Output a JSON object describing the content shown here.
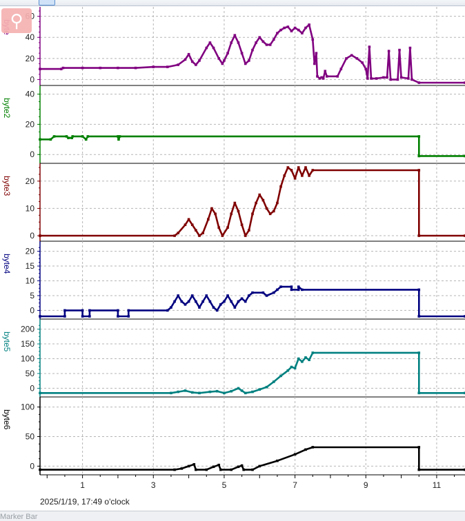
{
  "toolbar": {
    "buttons": [
      {
        "icon": "select-icon"
      },
      {
        "icon": "arrow-icon"
      },
      {
        "icon": "zoom-window-icon"
      },
      {
        "icon": "fit-icon"
      },
      {
        "icon": "save-icon"
      }
    ]
  },
  "zoom_icon": "magnifier-icon",
  "timestamp": "2025/1/19, 17:49 o'clock",
  "marker_bar": {
    "label": "Marker Bar"
  },
  "chart_data": {
    "type": "line",
    "x_ticks": [
      1,
      3,
      5,
      7,
      9,
      11
    ],
    "xlim": [
      -0.2,
      11.8
    ],
    "grid": true,
    "panels": [
      {
        "name": "byte1",
        "label": "byte",
        "color": "#800080",
        "yticks": [
          0,
          20,
          40,
          60
        ],
        "ylim": [
          -3,
          65
        ],
        "series": [
          [
            -0.2,
            10
          ],
          [
            0.4,
            10
          ],
          [
            0.45,
            11
          ],
          [
            1,
            11
          ],
          [
            1.5,
            11
          ],
          [
            2,
            11
          ],
          [
            2.5,
            11
          ],
          [
            3,
            12
          ],
          [
            3.4,
            12
          ],
          [
            3.7,
            14
          ],
          [
            3.9,
            19
          ],
          [
            4.0,
            24
          ],
          [
            4.1,
            17
          ],
          [
            4.2,
            14
          ],
          [
            4.3,
            18
          ],
          [
            4.5,
            30
          ],
          [
            4.6,
            35
          ],
          [
            4.7,
            30
          ],
          [
            4.85,
            20
          ],
          [
            4.95,
            15
          ],
          [
            5.0,
            18
          ],
          [
            5.1,
            25
          ],
          [
            5.2,
            35
          ],
          [
            5.3,
            42
          ],
          [
            5.4,
            35
          ],
          [
            5.5,
            25
          ],
          [
            5.6,
            15
          ],
          [
            5.7,
            18
          ],
          [
            5.8,
            28
          ],
          [
            5.9,
            35
          ],
          [
            6.0,
            40
          ],
          [
            6.1,
            36
          ],
          [
            6.2,
            33
          ],
          [
            6.3,
            33
          ],
          [
            6.4,
            38
          ],
          [
            6.5,
            44
          ],
          [
            6.6,
            47
          ],
          [
            6.7,
            49
          ],
          [
            6.8,
            50
          ],
          [
            6.9,
            46
          ],
          [
            7.0,
            49
          ],
          [
            7.1,
            47
          ],
          [
            7.2,
            44
          ],
          [
            7.3,
            49
          ],
          [
            7.4,
            52
          ],
          [
            7.5,
            38
          ],
          [
            7.55,
            15
          ],
          [
            7.6,
            25
          ],
          [
            7.63,
            3
          ],
          [
            7.7,
            1
          ],
          [
            7.75,
            2
          ],
          [
            7.8,
            1
          ],
          [
            7.85,
            8
          ],
          [
            7.9,
            3
          ],
          [
            8.2,
            3
          ],
          [
            8.3,
            10
          ],
          [
            8.45,
            20
          ],
          [
            8.6,
            23
          ],
          [
            8.75,
            20
          ],
          [
            8.9,
            16
          ],
          [
            9.0,
            10
          ],
          [
            9.05,
            1
          ],
          [
            9.1,
            31
          ],
          [
            9.15,
            1
          ],
          [
            9.3,
            1
          ],
          [
            9.5,
            2
          ],
          [
            9.6,
            2
          ],
          [
            9.65,
            27
          ],
          [
            9.7,
            0
          ],
          [
            9.9,
            0
          ],
          [
            9.95,
            28
          ],
          [
            10.0,
            2
          ],
          [
            10.2,
            1
          ],
          [
            10.25,
            30
          ],
          [
            10.3,
            0
          ],
          [
            10.5,
            -3
          ],
          [
            11.8,
            -3
          ]
        ]
      },
      {
        "name": "byte2",
        "label": "byte2",
        "color": "#008000",
        "yticks": [
          0,
          20,
          40
        ],
        "ylim": [
          -4,
          43
        ],
        "series": [
          [
            -0.2,
            10
          ],
          [
            0.1,
            10
          ],
          [
            0.2,
            12
          ],
          [
            0.55,
            12
          ],
          [
            0.6,
            11
          ],
          [
            0.7,
            11
          ],
          [
            0.72,
            12
          ],
          [
            1.0,
            12
          ],
          [
            1.1,
            10
          ],
          [
            1.15,
            12
          ],
          [
            2.0,
            12
          ],
          [
            2.02,
            10
          ],
          [
            2.05,
            12
          ],
          [
            10.5,
            12
          ],
          [
            10.5,
            -1
          ],
          [
            11.8,
            -1
          ]
        ]
      },
      {
        "name": "byte3",
        "label": "byte3",
        "color": "#800000",
        "yticks": [
          0,
          10,
          20
        ],
        "ylim": [
          -1,
          25
        ],
        "series": [
          [
            -0.2,
            0
          ],
          [
            3.6,
            0
          ],
          [
            3.7,
            1
          ],
          [
            3.9,
            4
          ],
          [
            4.0,
            6
          ],
          [
            4.1,
            4
          ],
          [
            4.2,
            2
          ],
          [
            4.3,
            0
          ],
          [
            4.4,
            1
          ],
          [
            4.55,
            6
          ],
          [
            4.65,
            10
          ],
          [
            4.75,
            8
          ],
          [
            4.85,
            3
          ],
          [
            4.95,
            0
          ],
          [
            5.1,
            3
          ],
          [
            5.2,
            8
          ],
          [
            5.3,
            12
          ],
          [
            5.4,
            9
          ],
          [
            5.5,
            4
          ],
          [
            5.6,
            0
          ],
          [
            5.7,
            2
          ],
          [
            5.8,
            8
          ],
          [
            5.9,
            12
          ],
          [
            6.0,
            15
          ],
          [
            6.1,
            13
          ],
          [
            6.2,
            10
          ],
          [
            6.3,
            8
          ],
          [
            6.4,
            9
          ],
          [
            6.5,
            12
          ],
          [
            6.6,
            18
          ],
          [
            6.7,
            22
          ],
          [
            6.8,
            25
          ],
          [
            6.9,
            24
          ],
          [
            7.0,
            21
          ],
          [
            7.1,
            25
          ],
          [
            7.2,
            22
          ],
          [
            7.3,
            25
          ],
          [
            7.4,
            22
          ],
          [
            7.5,
            24
          ],
          [
            10.5,
            24
          ],
          [
            10.5,
            0
          ],
          [
            11.8,
            0
          ]
        ]
      },
      {
        "name": "byte4",
        "label": "byte4",
        "color": "#000080",
        "yticks": [
          0,
          5,
          10,
          15,
          20
        ],
        "ylim": [
          -2,
          22
        ],
        "series": [
          [
            -0.2,
            -2
          ],
          [
            0.5,
            -2
          ],
          [
            0.5,
            0
          ],
          [
            1.0,
            0
          ],
          [
            1.0,
            -2
          ],
          [
            1.2,
            -2
          ],
          [
            1.2,
            0
          ],
          [
            2.0,
            0
          ],
          [
            2.0,
            -2
          ],
          [
            2.3,
            -2
          ],
          [
            2.3,
            0
          ],
          [
            3.4,
            0
          ],
          [
            3.5,
            1
          ],
          [
            3.6,
            3
          ],
          [
            3.7,
            5
          ],
          [
            3.8,
            3
          ],
          [
            3.9,
            2
          ],
          [
            4.0,
            3
          ],
          [
            4.1,
            5
          ],
          [
            4.2,
            3
          ],
          [
            4.3,
            1
          ],
          [
            4.4,
            3
          ],
          [
            4.5,
            5
          ],
          [
            4.6,
            3
          ],
          [
            4.7,
            1
          ],
          [
            4.8,
            0
          ],
          [
            4.9,
            2
          ],
          [
            5.0,
            3
          ],
          [
            5.1,
            5
          ],
          [
            5.2,
            3
          ],
          [
            5.3,
            1
          ],
          [
            5.4,
            3
          ],
          [
            5.5,
            4
          ],
          [
            5.6,
            3
          ],
          [
            5.7,
            5
          ],
          [
            5.8,
            6
          ],
          [
            6.1,
            6
          ],
          [
            6.2,
            5
          ],
          [
            6.4,
            6
          ],
          [
            6.5,
            7
          ],
          [
            6.6,
            8
          ],
          [
            6.9,
            8
          ],
          [
            6.9,
            7
          ],
          [
            7.1,
            7
          ],
          [
            7.1,
            8
          ],
          [
            7.2,
            7
          ],
          [
            10.5,
            7
          ],
          [
            10.5,
            -2
          ],
          [
            11.8,
            -2
          ]
        ]
      },
      {
        "name": "byte5",
        "label": "byte5",
        "color": "#008080",
        "yticks": [
          0,
          50,
          100,
          150,
          200
        ],
        "ylim": [
          -20,
          220
        ],
        "series": [
          [
            -0.2,
            -16
          ],
          [
            3.5,
            -16
          ],
          [
            3.7,
            -12
          ],
          [
            3.9,
            -8
          ],
          [
            4.1,
            -14
          ],
          [
            4.3,
            -16
          ],
          [
            4.6,
            -12
          ],
          [
            4.8,
            -10
          ],
          [
            5.0,
            -16
          ],
          [
            5.2,
            -10
          ],
          [
            5.4,
            0
          ],
          [
            5.5,
            -8
          ],
          [
            5.6,
            -16
          ],
          [
            5.8,
            -12
          ],
          [
            6.0,
            -4
          ],
          [
            6.2,
            4
          ],
          [
            6.4,
            22
          ],
          [
            6.6,
            42
          ],
          [
            6.8,
            60
          ],
          [
            6.9,
            72
          ],
          [
            7.0,
            68
          ],
          [
            7.1,
            100
          ],
          [
            7.2,
            90
          ],
          [
            7.3,
            104
          ],
          [
            7.4,
            96
          ],
          [
            7.5,
            120
          ],
          [
            10.5,
            120
          ],
          [
            10.5,
            -16
          ],
          [
            11.8,
            -16
          ]
        ]
      },
      {
        "name": "byte6",
        "label": "byte6",
        "color": "#000000",
        "yticks": [
          0,
          50,
          100
        ],
        "ylim": [
          -10,
          110
        ],
        "series": [
          [
            -0.2,
            -6
          ],
          [
            3.6,
            -6
          ],
          [
            3.8,
            -4
          ],
          [
            4.0,
            0
          ],
          [
            4.15,
            3
          ],
          [
            4.2,
            -6
          ],
          [
            4.5,
            -6
          ],
          [
            4.7,
            -1
          ],
          [
            4.85,
            2
          ],
          [
            4.9,
            -6
          ],
          [
            5.2,
            -6
          ],
          [
            5.4,
            -1
          ],
          [
            5.5,
            1
          ],
          [
            5.55,
            -6
          ],
          [
            5.8,
            -6
          ],
          [
            6.0,
            0
          ],
          [
            6.5,
            9
          ],
          [
            7.0,
            20
          ],
          [
            7.3,
            28
          ],
          [
            7.5,
            32
          ],
          [
            10.5,
            32
          ],
          [
            10.5,
            -6
          ],
          [
            11.8,
            -6
          ]
        ]
      }
    ]
  }
}
